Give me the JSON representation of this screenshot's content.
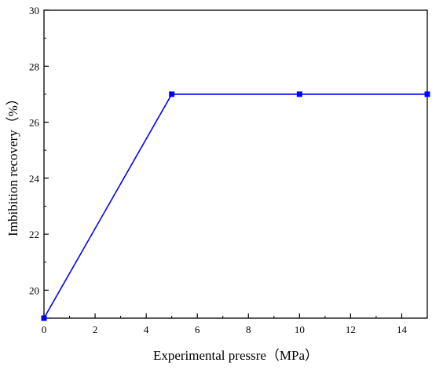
{
  "chart_data": {
    "type": "line",
    "xlabel": "Experimental pressre（MPa）",
    "ylabel": "Imbibition recovery（%）",
    "xlim": [
      0,
      15
    ],
    "ylim": [
      19,
      30
    ],
    "x_ticks": [
      0,
      2,
      4,
      6,
      8,
      10,
      12,
      14
    ],
    "x_tick_labels": [
      "0",
      "2",
      "4",
      "6",
      "8",
      "10",
      "12",
      "14"
    ],
    "y_ticks": [
      20,
      22,
      24,
      26,
      28,
      30
    ],
    "y_tick_labels": [
      "20",
      "22",
      "24",
      "26",
      "28",
      "30"
    ],
    "grid": false,
    "legend": "none",
    "series": [
      {
        "x": [
          0,
          5,
          10,
          15
        ],
        "y": [
          19,
          27,
          27,
          27
        ],
        "color": "#0000ff",
        "marker": "square"
      }
    ]
  }
}
